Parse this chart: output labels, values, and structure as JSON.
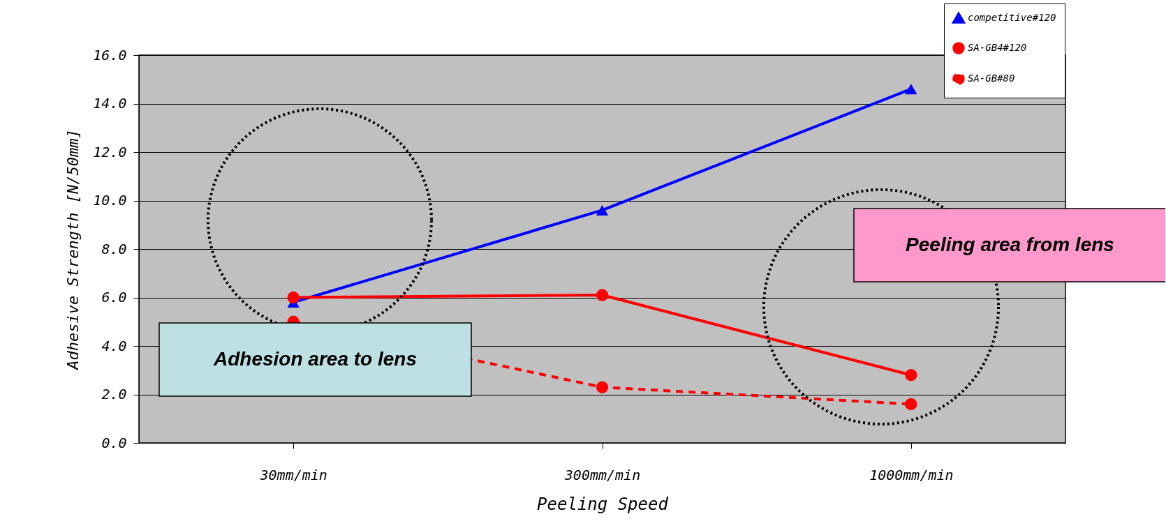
{
  "chart_data": {
    "type": "line",
    "xlabel": "Peeling Speed",
    "ylabel": "Adhesive Strength [N/50mm]",
    "categories": [
      "30mm/min",
      "300mm/min",
      "1000mm/min"
    ],
    "series": [
      {
        "name": "competitive#120",
        "color": "#0000ff",
        "values": [
          5.8,
          9.6,
          14.6
        ],
        "marker": "triangle",
        "line_style": "solid"
      },
      {
        "name": "SA-GB4#120",
        "color": "#ff0000",
        "values": [
          6.0,
          6.1,
          2.8
        ],
        "marker": "circle",
        "line_style": "solid"
      },
      {
        "name": "SA-GB#80",
        "color": "#ff0000",
        "values": [
          5.0,
          2.3,
          1.6
        ],
        "marker": "circle",
        "line_style": "dashed"
      }
    ],
    "ylim": [
      0,
      16
    ],
    "yticks": [
      {
        "value": 0,
        "label": "0.0"
      },
      {
        "value": 2,
        "label": "2.0"
      },
      {
        "value": 4,
        "label": "4.0"
      },
      {
        "value": 6,
        "label": "6.0"
      },
      {
        "value": 8,
        "label": "8.0"
      },
      {
        "value": 10,
        "label": "10.0"
      },
      {
        "value": 12,
        "label": "12.0"
      },
      {
        "value": 14,
        "label": "14.0"
      },
      {
        "value": 16,
        "label": "16.0"
      }
    ],
    "grid": "y",
    "legend": "top right",
    "annotations": [
      "Adhesion area  to lens",
      "Peeling area from lens"
    ]
  }
}
